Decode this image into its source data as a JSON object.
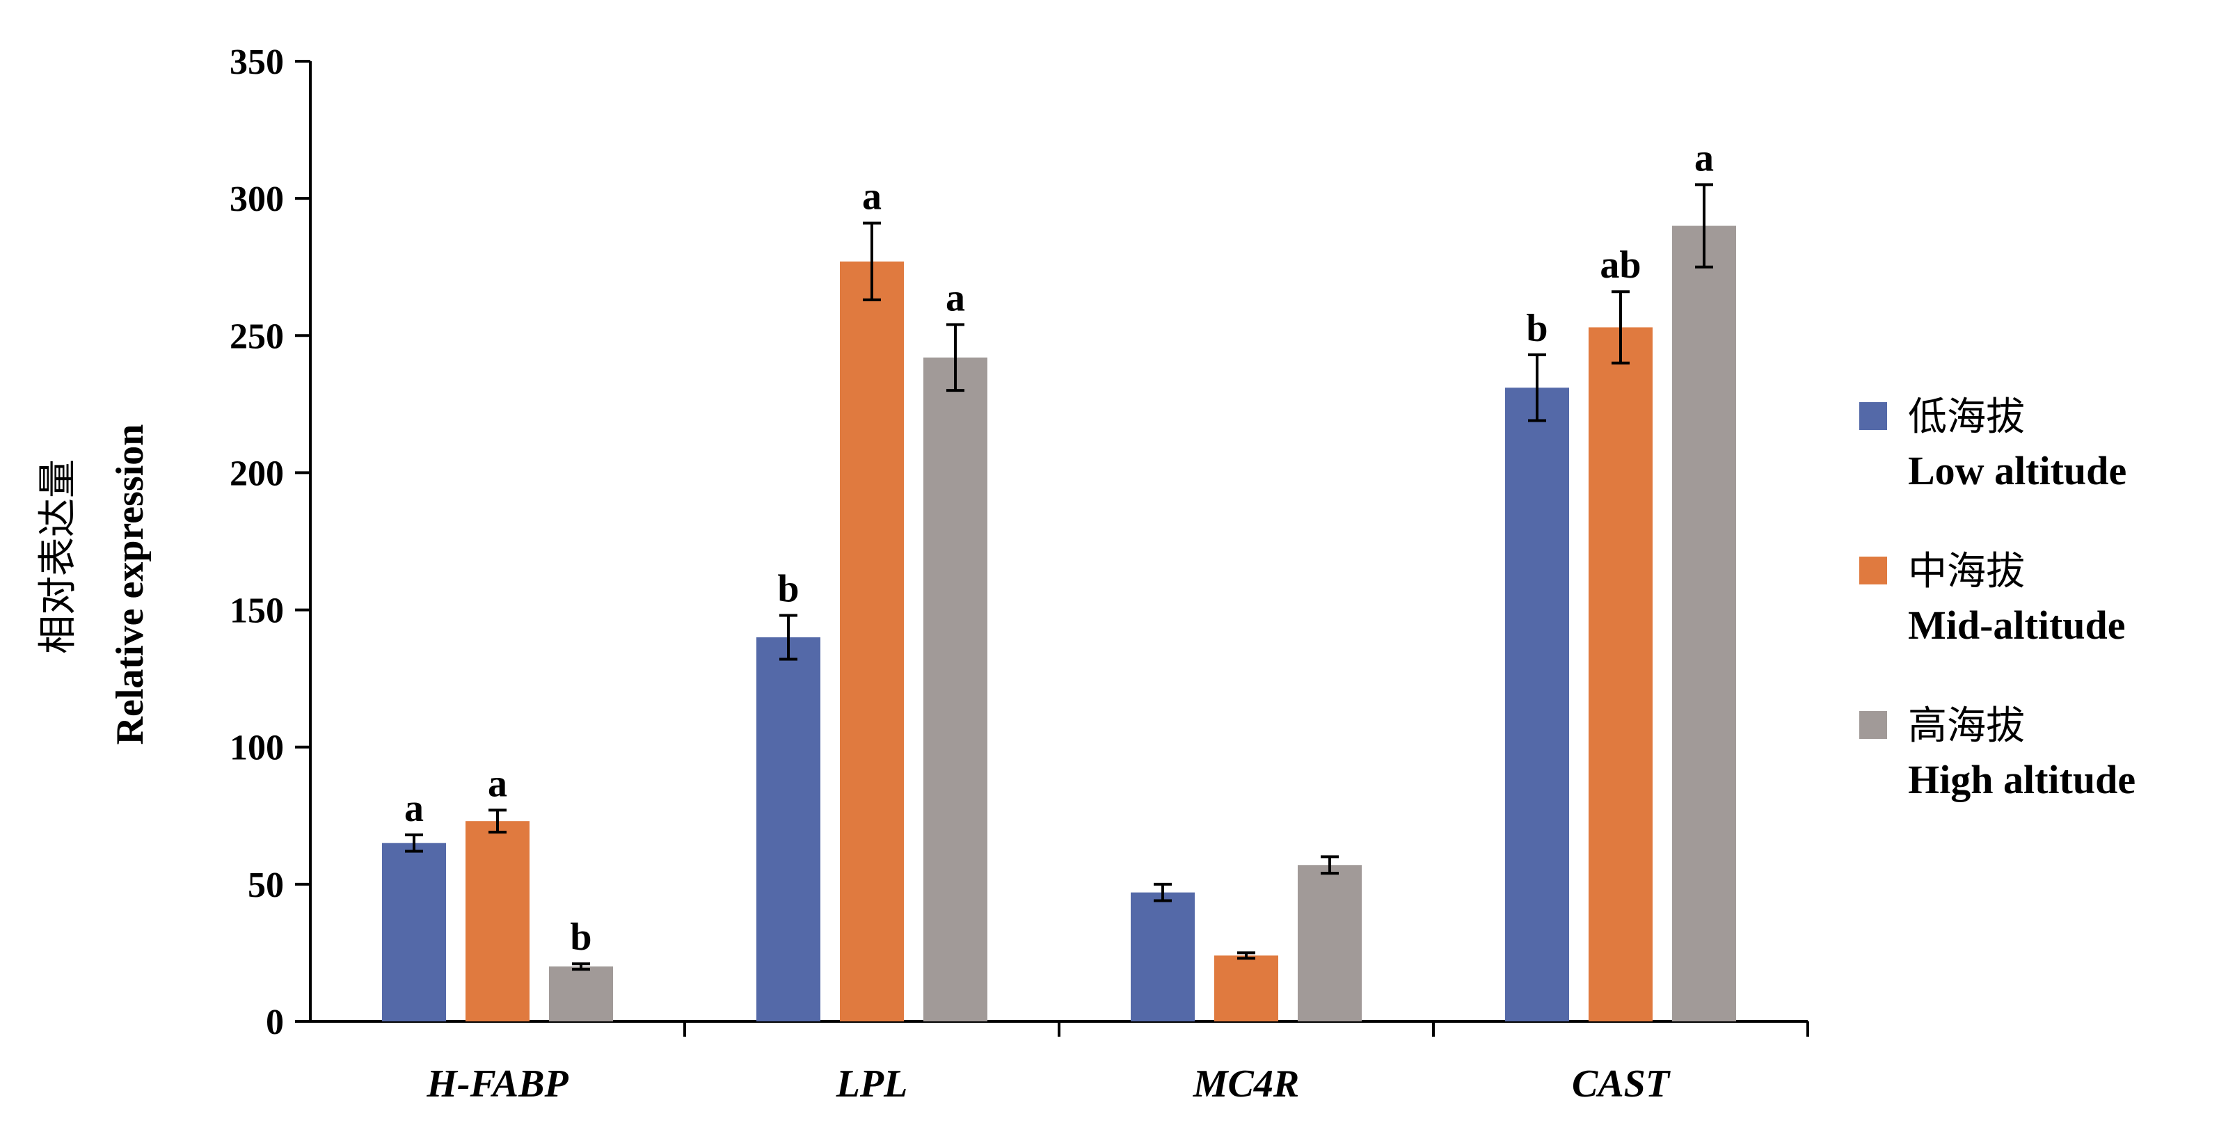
{
  "chart_data": {
    "type": "bar",
    "categories": [
      "H-FABP",
      "LPL",
      "MC4R",
      "CAST"
    ],
    "ylabel_cn": "相对表达量",
    "ylabel_en": "Relative expression",
    "ylim": [
      0,
      350
    ],
    "yticks": [
      0,
      50,
      100,
      150,
      200,
      250,
      300,
      350
    ],
    "grid": false,
    "legend_position": "right",
    "series": [
      {
        "name_cn": "低海拔",
        "name_en": "Low altitude",
        "color": "#5469a8",
        "values": [
          65,
          140,
          47,
          231
        ],
        "errors": [
          3,
          8,
          3,
          12
        ],
        "significance": [
          "a",
          "b",
          "",
          "b"
        ]
      },
      {
        "name_cn": "中海拔",
        "name_en": "Mid-altitude",
        "color": "#e07a3f",
        "values": [
          73,
          277,
          24,
          253
        ],
        "errors": [
          4,
          14,
          1,
          13
        ],
        "significance": [
          "a",
          "a",
          "",
          "ab"
        ]
      },
      {
        "name_cn": "高海拔",
        "name_en": "High altitude",
        "color": "#a19a98",
        "values": [
          20,
          242,
          57,
          290
        ],
        "errors": [
          1,
          12,
          3,
          15
        ],
        "significance": [
          "b",
          "a",
          "",
          "a"
        ]
      }
    ]
  }
}
